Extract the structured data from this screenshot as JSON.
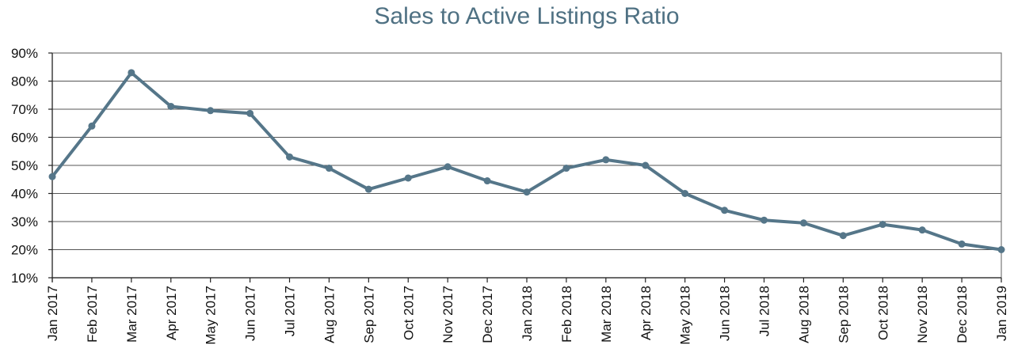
{
  "chart_data": {
    "type": "line",
    "title": "Sales to Active Listings Ratio",
    "xlabel": "",
    "ylabel": "",
    "ylim": [
      10,
      90
    ],
    "yticks": [
      10,
      20,
      30,
      40,
      50,
      60,
      70,
      80,
      90
    ],
    "ytick_labels": [
      "10%",
      "20%",
      "30%",
      "40%",
      "50%",
      "60%",
      "70%",
      "80%",
      "90%"
    ],
    "grid": true,
    "legend": "none",
    "categories": [
      "Jan 2017",
      "Feb 2017",
      "Mar 2017",
      "Apr 2017",
      "May 2017",
      "Jun 2017",
      "Jul 2017",
      "Aug 2017",
      "Sep 2017",
      "Oct 2017",
      "Nov 2017",
      "Dec 2017",
      "Jan 2018",
      "Feb 2018",
      "Mar 2018",
      "Apr 2018",
      "May 2018",
      "Jun 2018",
      "Jul 2018",
      "Aug 2018",
      "Sep 2018",
      "Oct 2018",
      "Nov 2018",
      "Dec 2018",
      "Jan 2019"
    ],
    "series": [
      {
        "values": [
          46,
          64,
          83,
          71,
          69.5,
          68.5,
          53,
          49,
          41.5,
          45.5,
          49.5,
          44.5,
          40.5,
          49,
          52,
          50,
          40,
          34,
          30.5,
          29.5,
          25,
          29,
          27,
          22,
          20
        ],
        "color": "#557689"
      }
    ],
    "colors": {
      "title": "#4f7183",
      "series": "#557689",
      "grid": "#555555",
      "text": "#111111"
    }
  }
}
